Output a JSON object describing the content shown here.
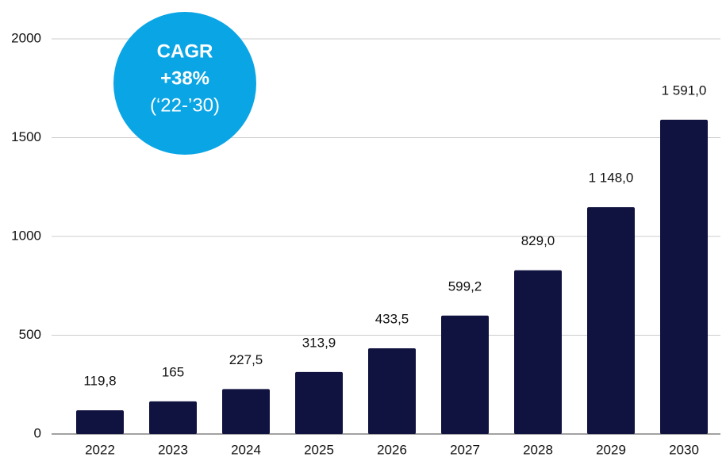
{
  "chart_data": {
    "type": "bar",
    "categories": [
      "2022",
      "2023",
      "2024",
      "2025",
      "2026",
      "2027",
      "2028",
      "2029",
      "2030"
    ],
    "values": [
      119.8,
      165,
      227.5,
      313.9,
      433.5,
      599.2,
      829.0,
      1148.0,
      1591.0
    ],
    "value_labels": [
      "119,8",
      "165",
      "227,5",
      "313,9",
      "433,5",
      "599,2",
      "829,0",
      "1 148,0",
      "1 591,0"
    ],
    "color": "#10123f",
    "ylim": [
      0,
      2000
    ],
    "yticks": [
      0,
      500,
      1000,
      1500,
      2000
    ],
    "grid": true,
    "annotations": [
      "CAGR",
      "+38%",
      "(‘22-’30)"
    ],
    "annotation_color": "#0aa5e5"
  }
}
